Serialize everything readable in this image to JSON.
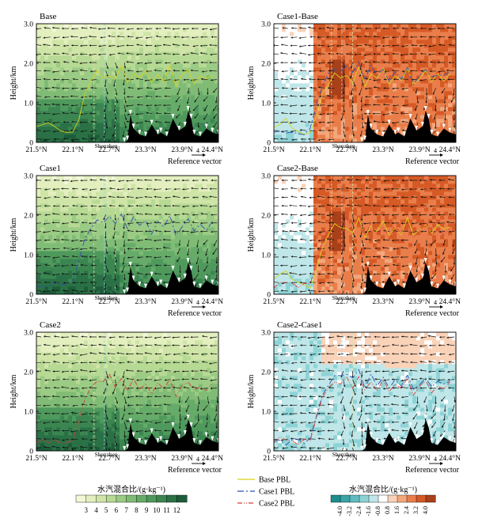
{
  "figure": {
    "panels": [
      {
        "id": "base",
        "title": "Base",
        "kind": "abs",
        "pbl": [
          "base"
        ]
      },
      {
        "id": "case1_base",
        "title": "Case1-Base",
        "kind": "diff_pos",
        "pbl": [
          "base",
          "case1"
        ]
      },
      {
        "id": "case1",
        "title": "Case1",
        "kind": "abs",
        "pbl": [
          "case1"
        ]
      },
      {
        "id": "case2_base",
        "title": "Case2-Base",
        "kind": "diff_pos",
        "pbl": [
          "base",
          "case2"
        ]
      },
      {
        "id": "case2",
        "title": "Case2",
        "kind": "abs",
        "pbl": [
          "case2"
        ]
      },
      {
        "id": "case2_case1",
        "title": "Case2-Case1",
        "kind": "diff_mixed",
        "pbl": [
          "case1",
          "case2"
        ]
      }
    ],
    "location_label": "Shenzhen",
    "reference_vector": {
      "label": "Reference vector",
      "value": "4"
    }
  },
  "chart_data": {
    "type": "cross-section-contour-with-wind-vectors",
    "xlabel": "",
    "ylabel": "Height/km",
    "x_ticks": [
      "21.5°N",
      "22.1°N",
      "22.7°N",
      "23.3°N",
      "23.9°N",
      "24.4°N"
    ],
    "x_values": [
      21.5,
      22.1,
      22.7,
      23.3,
      23.9,
      24.4
    ],
    "xlim": [
      21.5,
      24.5
    ],
    "y_ticks": [
      "0",
      "1.0",
      "2.0",
      "3.0"
    ],
    "y_values": [
      0,
      1,
      2,
      3
    ],
    "ylim": [
      0,
      3
    ],
    "pbl_series": [
      {
        "key": "base",
        "name": "Base PBL",
        "color": "#d8d21a",
        "dash": "solid",
        "x": [
          21.5,
          21.6,
          21.7,
          21.8,
          21.9,
          22.0,
          22.1,
          22.2,
          22.3,
          22.4,
          22.5,
          22.6,
          22.7,
          22.8,
          22.9,
          23.0,
          23.1,
          23.2,
          23.3,
          23.4,
          23.5,
          23.6,
          23.7,
          23.8,
          23.9,
          24.0,
          24.1,
          24.2,
          24.3,
          24.4
        ],
        "y": [
          0.35,
          0.45,
          0.55,
          0.4,
          0.3,
          0.25,
          0.2,
          0.6,
          1.2,
          1.5,
          1.8,
          1.65,
          1.7,
          1.55,
          1.95,
          1.45,
          1.75,
          1.6,
          1.85,
          1.5,
          1.7,
          1.55,
          1.9,
          1.45,
          1.65,
          1.8,
          1.5,
          1.7,
          1.6,
          1.75
        ]
      },
      {
        "key": "case1",
        "name": "Case1 PBL",
        "color": "#2f4fb0",
        "dash": "8,3,2,3",
        "x": [
          21.5,
          21.6,
          21.7,
          21.8,
          21.9,
          22.0,
          22.1,
          22.2,
          22.3,
          22.4,
          22.5,
          22.6,
          22.7,
          22.8,
          22.9,
          23.0,
          23.1,
          23.2,
          23.3,
          23.4,
          23.5,
          23.6,
          23.7,
          23.8,
          23.9,
          24.0,
          24.1,
          24.2,
          24.3,
          24.4
        ],
        "y": [
          0.2,
          0.25,
          0.2,
          0.3,
          0.25,
          0.2,
          0.35,
          0.9,
          1.4,
          1.7,
          1.9,
          1.85,
          1.95,
          1.8,
          2.0,
          1.6,
          1.9,
          1.7,
          1.85,
          1.55,
          1.8,
          1.65,
          1.95,
          1.5,
          1.7,
          1.85,
          1.6,
          1.75,
          1.65,
          1.8
        ]
      },
      {
        "key": "case2",
        "name": "Case2 PBL",
        "color": "#d83a3a",
        "dash": "6,2,1,2,1,2",
        "x": [
          21.5,
          21.6,
          21.7,
          21.8,
          21.9,
          22.0,
          22.1,
          22.2,
          22.3,
          22.4,
          22.5,
          22.6,
          22.7,
          22.8,
          22.9,
          23.0,
          23.1,
          23.2,
          23.3,
          23.4,
          23.5,
          23.6,
          23.7,
          23.8,
          23.9,
          24.0,
          24.1,
          24.2,
          24.3,
          24.4
        ],
        "y": [
          0.2,
          0.3,
          0.25,
          0.3,
          0.2,
          0.25,
          0.3,
          0.8,
          1.3,
          1.6,
          1.75,
          1.7,
          1.9,
          1.6,
          1.85,
          1.5,
          1.8,
          1.55,
          1.75,
          1.45,
          1.7,
          1.55,
          1.85,
          1.4,
          1.6,
          1.75,
          1.5,
          1.65,
          1.55,
          1.7
        ]
      }
    ],
    "colorbar_abs": {
      "label": "水汽混合比/(g·kg⁻¹)",
      "ticks": [
        "3",
        "4",
        "5",
        "6",
        "7",
        "8",
        "9",
        "10",
        "11",
        "12"
      ],
      "colors": [
        "#f2f7d8",
        "#e3efbf",
        "#cfe5a8",
        "#b6d994",
        "#9bcb84",
        "#80bc76",
        "#66ab69",
        "#4f995d",
        "#3b8551",
        "#2a7146",
        "#1d5c3a"
      ]
    },
    "colorbar_diff": {
      "label": "水汽混合比/(g·kg⁻¹)",
      "ticks": [
        "-4.0",
        "-3.2",
        "-2.4",
        "-1.6",
        "-0.8",
        "0.8",
        "1.6",
        "2.4",
        "3.2",
        "4.0"
      ],
      "colors": [
        "#1e8d8d",
        "#39a3a6",
        "#5fbcc0",
        "#8dd3d6",
        "#bfe6e8",
        "#ffffff",
        "#f9d2b8",
        "#f2a77c",
        "#e97e4b",
        "#d65a26",
        "#a8401a"
      ]
    }
  }
}
